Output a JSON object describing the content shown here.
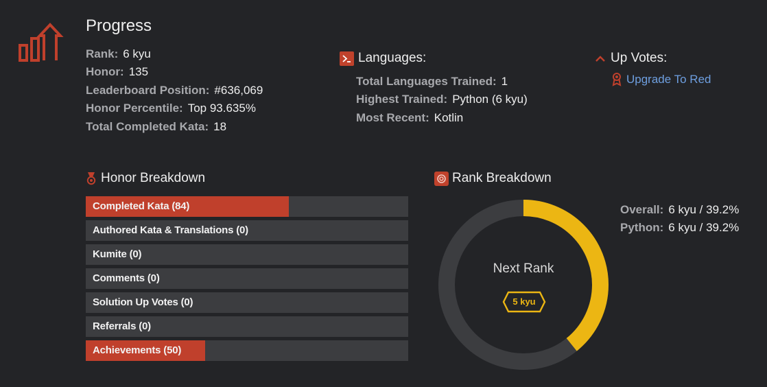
{
  "profile": {
    "title": "Progress",
    "stats": [
      {
        "label": "Rank:",
        "value": "6 kyu"
      },
      {
        "label": "Honor:",
        "value": "135"
      },
      {
        "label": "Leaderboard Position:",
        "value": "#636,069"
      },
      {
        "label": "Honor Percentile:",
        "value": "Top 93.635%"
      },
      {
        "label": "Total Completed Kata:",
        "value": "18"
      }
    ]
  },
  "languages": {
    "header": "Languages:",
    "icon": "terminal-icon",
    "stats": [
      {
        "label": "Total Languages Trained:",
        "value": "1"
      },
      {
        "label": "Highest Trained:",
        "value": "Python (6 kyu)"
      },
      {
        "label": "Most Recent:",
        "value": "Kotlin"
      }
    ]
  },
  "upvotes": {
    "header": "Up Votes:",
    "icon": "chevron-up-icon",
    "link_icon": "award-ribbon-icon",
    "link_label": "Upgrade To Red"
  },
  "honor_breakdown": {
    "header": "Honor Breakdown",
    "icon": "medal-icon",
    "bars": [
      {
        "label": "Completed Kata (84)",
        "fill": 0.63
      },
      {
        "label": "Authored Kata & Translations (0)",
        "fill": 0
      },
      {
        "label": "Kumite (0)",
        "fill": 0
      },
      {
        "label": "Comments (0)",
        "fill": 0
      },
      {
        "label": "Solution Up Votes (0)",
        "fill": 0
      },
      {
        "label": "Referrals (0)",
        "fill": 0
      },
      {
        "label": "Achievements (50)",
        "fill": 0.37
      }
    ]
  },
  "rank_breakdown": {
    "header": "Rank Breakdown",
    "icon": "rank-target-icon",
    "progress": 0.392,
    "center_label": "Next Rank",
    "next_rank": "5 kyu",
    "stats": [
      {
        "label": "Overall:",
        "value": "6 kyu / 39.2%"
      },
      {
        "label": "Python:",
        "value": "6 kyu / 39.2%"
      }
    ]
  },
  "colors": {
    "background": "#232427",
    "accent_red": "#c0402c",
    "track": "#3c3d40",
    "rank_yellow": "#ecb613",
    "link_blue": "#6e9fe0"
  }
}
